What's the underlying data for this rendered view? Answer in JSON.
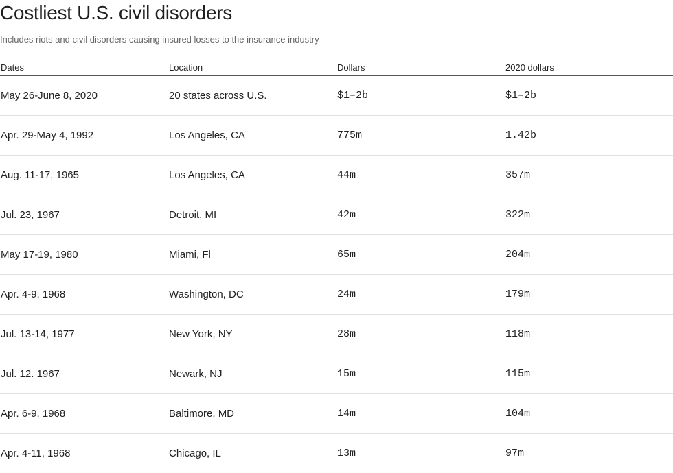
{
  "title": "Costliest U.S. civil disorders",
  "subtitle": "Includes riots and civil disorders causing insured losses to the insurance industry",
  "chart_data": {
    "type": "table",
    "title": "Costliest U.S. civil disorders",
    "subtitle": "Includes riots and civil disorders causing insured losses to the insurance industry",
    "columns": [
      "Dates",
      "Location",
      "Dollars",
      "2020 dollars"
    ],
    "rows": [
      [
        "May 26-June 8, 2020",
        "20 states across U.S.",
        "$1–2b",
        "$1–2b"
      ],
      [
        "Apr. 29-May 4, 1992",
        "Los Angeles, CA",
        "775m",
        "1.42b"
      ],
      [
        "Aug. 11-17, 1965",
        "Los Angeles, CA",
        "44m",
        "357m"
      ],
      [
        "Jul. 23, 1967",
        "Detroit, MI",
        "42m",
        "322m"
      ],
      [
        "May 17-19, 1980",
        "Miami, Fl",
        "65m",
        "204m"
      ],
      [
        "Apr. 4-9, 1968",
        "Washington, DC",
        "24m",
        "179m"
      ],
      [
        "Jul. 13-14, 1977",
        "New York, NY",
        "28m",
        "118m"
      ],
      [
        "Jul. 12. 1967",
        "Newark, NJ",
        "15m",
        "115m"
      ],
      [
        "Apr. 6-9, 1968",
        "Baltimore, MD",
        "14m",
        "104m"
      ],
      [
        "Apr. 4-11, 1968",
        "Chicago, IL",
        "13m",
        "97m"
      ]
    ]
  }
}
